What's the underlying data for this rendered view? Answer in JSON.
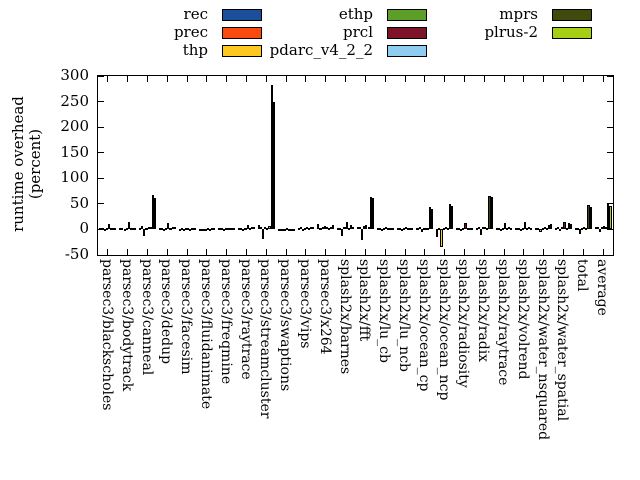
{
  "page": {
    "background": "#ffffff"
  },
  "legend": {
    "columns": [
      [
        "rec",
        "prec",
        "thp"
      ],
      [
        "ethp",
        "prcl",
        "pdarc_v4_2_2"
      ],
      [
        "mprs",
        "plrus-2"
      ]
    ]
  },
  "y_axis": {
    "title_line1": "runtime overhead",
    "title_line2": "(percent)",
    "tick_values": [
      300,
      250,
      200,
      150,
      100,
      50,
      0,
      -50
    ]
  },
  "chart_data": {
    "type": "bar",
    "title": "",
    "xlabel": "",
    "ylabel": "runtime overhead (percent)",
    "ylim": [
      -50,
      300
    ],
    "ytick_step": 50,
    "grid": false,
    "legend_position": "top",
    "categories": [
      "parsec3/blackscholes",
      "parsec3/bodytrack",
      "parsec3/canneal",
      "parsec3/dedup",
      "parsec3/facesim",
      "parsec3/fluidanimate",
      "parsec3/freqmine",
      "parsec3/raytrace",
      "parsec3/streamcluster",
      "parsec3/swaptions",
      "parsec3/vips",
      "parsec3/x264",
      "splash2x/barnes",
      "splash2x/fft",
      "splash2x/lu_cb",
      "splash2x/lu_ncb",
      "splash2x/ocean_cp",
      "splash2x/ocean_ncp",
      "splash2x/radiosity",
      "splash2x/radix",
      "splash2x/raytrace",
      "splash2x/volrend",
      "splash2x/water_nsquared",
      "splash2x/water_spatial",
      "total",
      "average"
    ],
    "series": [
      {
        "name": "rec",
        "color": "#1b4f9c",
        "values": [
          2,
          2,
          3,
          3,
          1,
          1,
          2,
          2,
          8,
          1,
          3,
          10,
          3,
          5,
          2,
          2,
          3,
          -15,
          2,
          3,
          2,
          2,
          2,
          3,
          3,
          4
        ]
      },
      {
        "name": "prec",
        "color": "#fb4a0e",
        "values": [
          2,
          2,
          6,
          3,
          2,
          1,
          2,
          3,
          4,
          1,
          4,
          3,
          3,
          4,
          2,
          2,
          5,
          3,
          2,
          4,
          2,
          2,
          2,
          4,
          3,
          4
        ]
      },
      {
        "name": "thp",
        "color": "#fdc821",
        "values": [
          -2,
          -1,
          -12,
          -2,
          -1,
          -2,
          -1,
          -2,
          -18,
          -1,
          -3,
          5,
          -12,
          -20,
          -2,
          -2,
          -5,
          -35,
          -2,
          -10,
          -2,
          -3,
          -5,
          -4,
          -8,
          -6
        ]
      },
      {
        "name": "ethp",
        "color": "#5c9e28",
        "values": [
          2,
          2,
          3,
          3,
          2,
          1,
          2,
          3,
          4,
          1,
          3,
          6,
          5,
          6,
          2,
          2,
          3,
          3,
          2,
          4,
          3,
          3,
          3,
          5,
          3,
          4
        ]
      },
      {
        "name": "prcl",
        "color": "#7d1228",
        "values": [
          10,
          15,
          4,
          12,
          3,
          2,
          3,
          8,
          3,
          2,
          5,
          4,
          15,
          8,
          4,
          4,
          3,
          4,
          12,
          5,
          12,
          14,
          4,
          15,
          5,
          6
        ]
      },
      {
        "name": "pdarc_v4_2_2",
        "color": "#8ecdf0",
        "values": [
          2,
          2,
          4,
          3,
          1,
          1,
          2,
          2,
          6,
          1,
          2,
          2,
          3,
          4,
          2,
          2,
          2,
          3,
          2,
          3,
          2,
          2,
          2,
          3,
          3,
          4
        ]
      },
      {
        "name": "mprs",
        "color": "#3f4a0c",
        "values": [
          3,
          2,
          67,
          5,
          2,
          2,
          3,
          4,
          282,
          1,
          4,
          5,
          8,
          63,
          3,
          3,
          43,
          49,
          3,
          66,
          4,
          4,
          8,
          12,
          47,
          49
        ]
      },
      {
        "name": "plrus-2",
        "color": "#a6ce13",
        "values": [
          3,
          2,
          62,
          4,
          2,
          2,
          3,
          4,
          249,
          1,
          5,
          8,
          5,
          61,
          3,
          3,
          40,
          46,
          3,
          64,
          3,
          3,
          10,
          10,
          44,
          46
        ]
      }
    ]
  }
}
